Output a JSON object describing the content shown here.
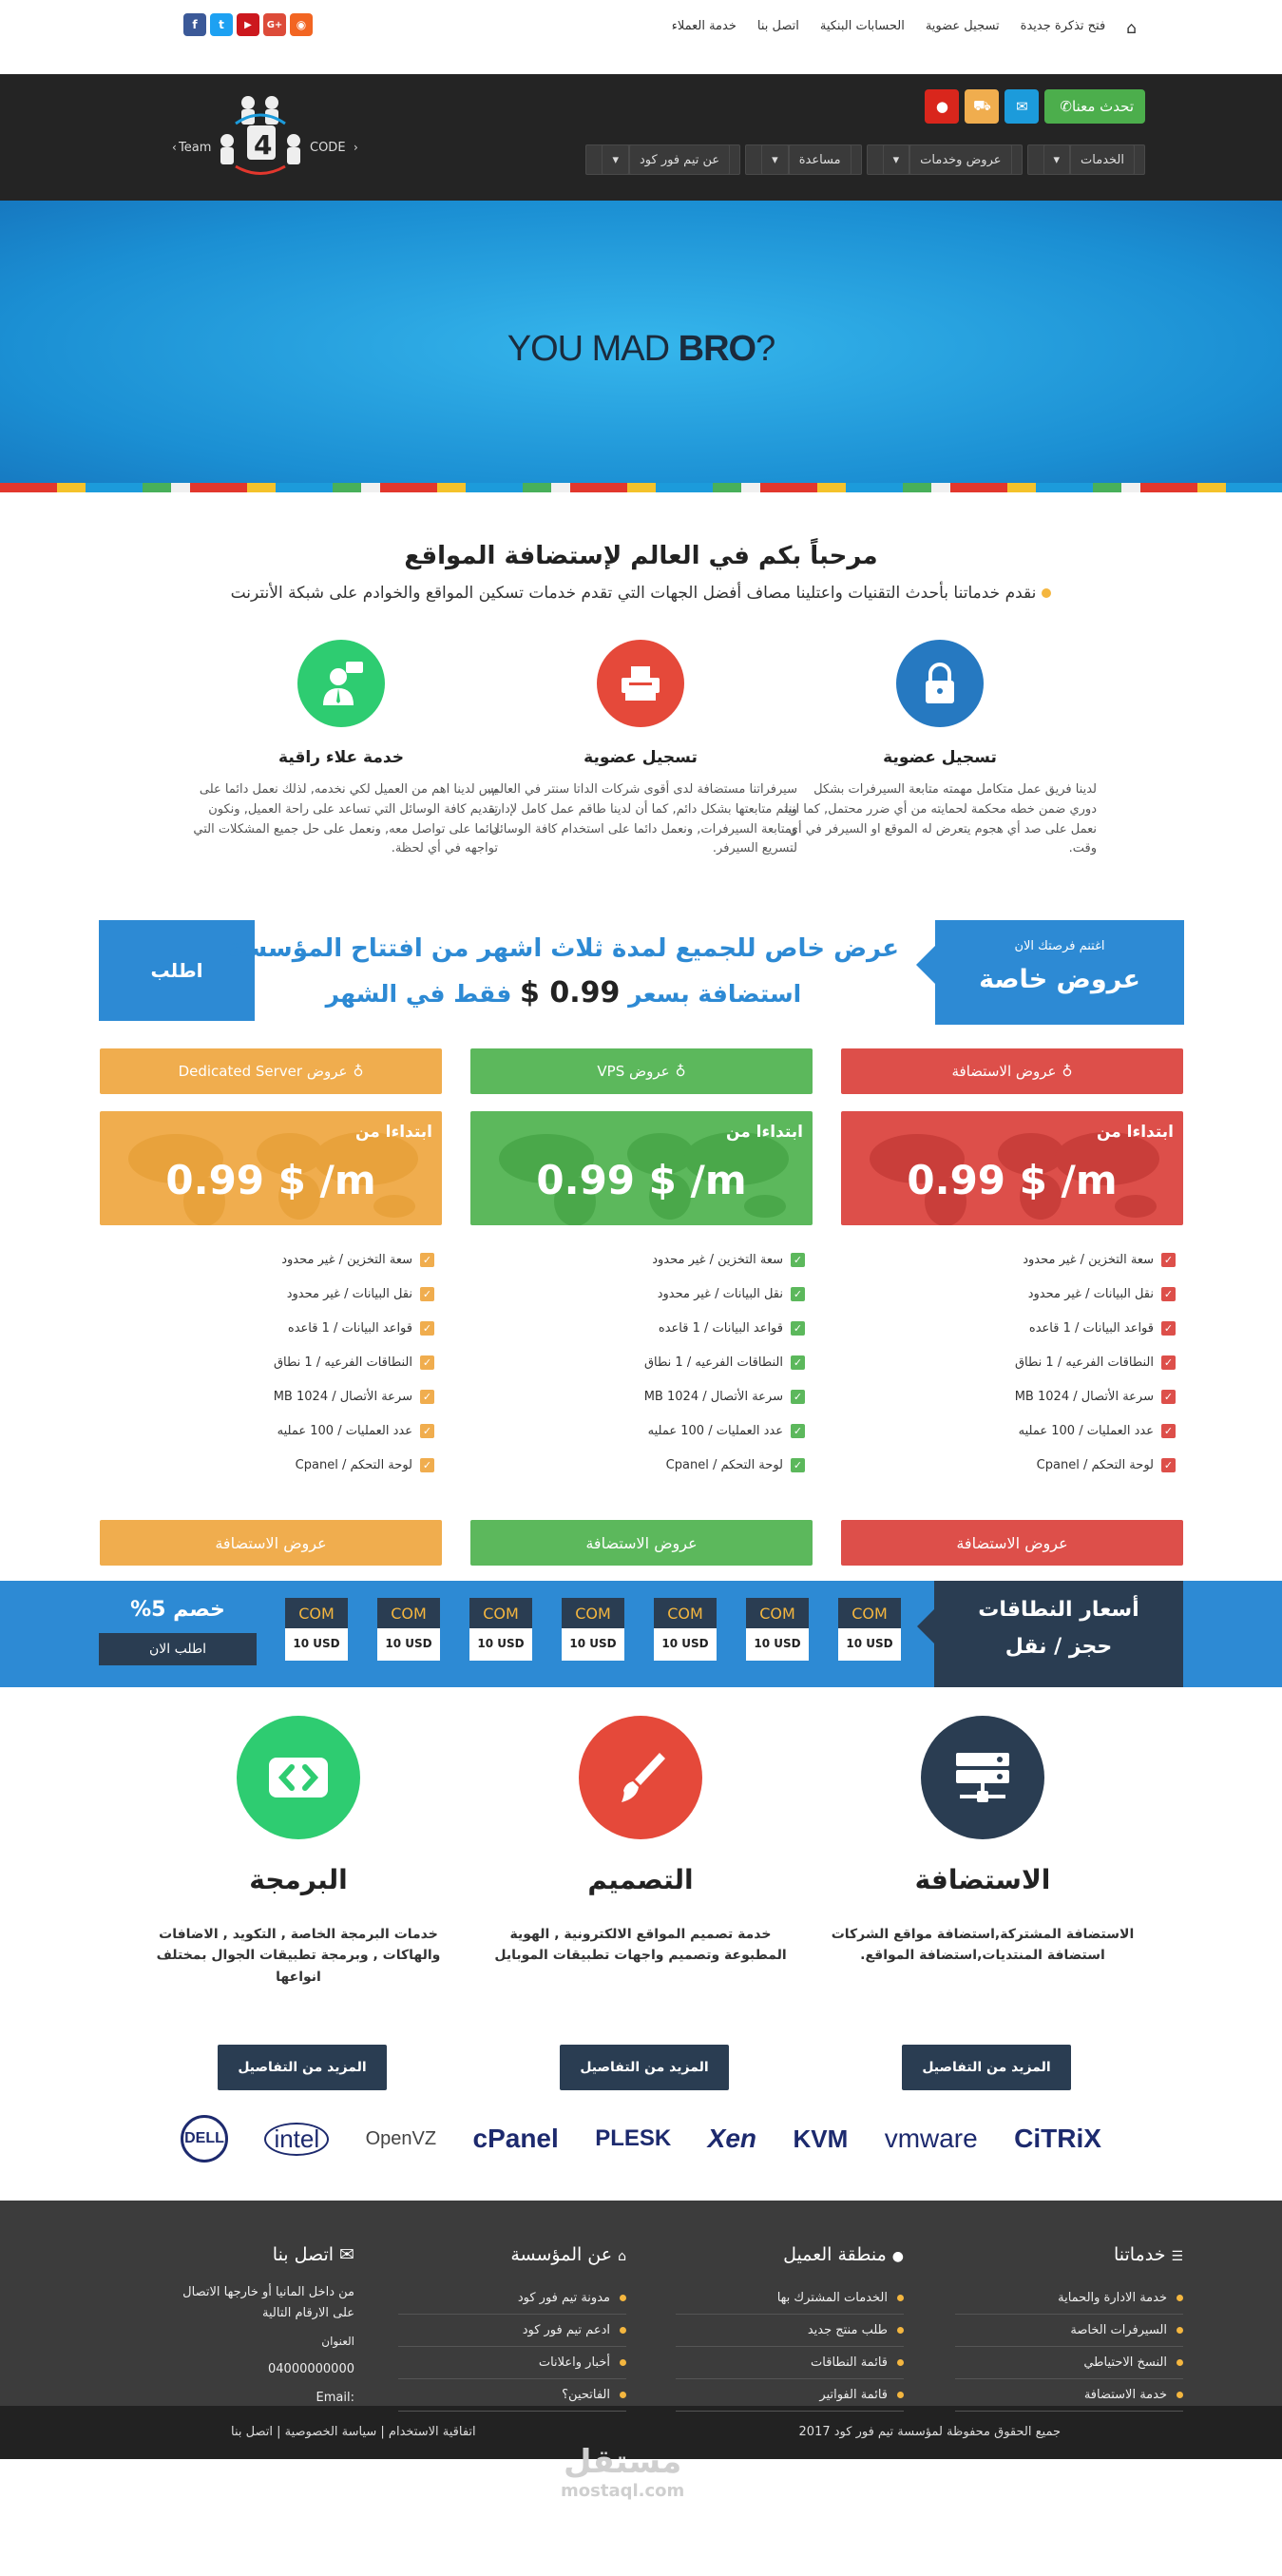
{
  "topnav": {
    "items": [
      "فتح تذكرة جديدة",
      "تسجيل عضوية",
      "الحسابات البنكية",
      "اتصل بنا",
      "خدمة العملاء"
    ]
  },
  "social": [
    {
      "name": "facebook",
      "glyph": "f",
      "color": "#3b5998"
    },
    {
      "name": "twitter",
      "glyph": "t",
      "color": "#1da1f2"
    },
    {
      "name": "youtube",
      "glyph": "▶",
      "color": "#cc181e"
    },
    {
      "name": "google-plus",
      "glyph": "G+",
      "color": "#dd4b39"
    },
    {
      "name": "rss",
      "glyph": "◉",
      "color": "#f26522"
    }
  ],
  "logo": {
    "left": "Team",
    "right": "CODE",
    "num": "4"
  },
  "header": {
    "chat_label": "تحدث معنا",
    "menu": [
      "الخدمات",
      "عروض وخدمات",
      "مساعدة",
      "عن تيم فور كود"
    ]
  },
  "hero": {
    "text_a": "YOU MAD ",
    "text_b": "BRO",
    "text_c": "?"
  },
  "welcome": {
    "title": "مرحباً بكم في العالم لإستضافة المواقع",
    "subtitle": "نقدم خدماتنا بأحدث التقنيات واعتلينا مصاف أفضل الجهات التي تقدم خدمات تسكين المواقع والخوادم على شبكة الأنترنت",
    "features": [
      {
        "title": "تسجيل عضوية",
        "text": "لدينا فريق عمل متكامل مهمته متابعة السيرفرات بشكل دوري ضمن خطه محكمة لحمايته من أي ضرر محتمل, كما اننا نعمل على صد أي هجوم يتعرض له الموقع او السيرفر في أي وقت."
      },
      {
        "title": "تسجيل عضوية",
        "text": "سيرفراتنا مستضافة لدى أقوى شركات الداتا سنتر في العالم, ويتم متابعتها بشكل دائم, كما أن لدينا طاقم عمل كامل لإدارة ومتابعة السيرفرات, ونعمل دائما على استخدام كافة الوسائل لتسريع السيرفر."
      },
      {
        "title": "خدمة علاء راقية",
        "text": "يس لدينا اهم من العميل لكي نخدمه, لذلك نعمل دائما على تقديم كافة الوسائل التي تساعد على راحة العميل, ونكون دائما على تواصل معه, ونعمل على حل جميع المشكلات التي تواجهه في أي لحظة."
      }
    ]
  },
  "offer": {
    "tag_small": "اغتنم فرصتك الان",
    "tag_big": "عروض خاصة",
    "line1": "عرض خاص للجميع لمدة ثلاث اشهر من افتتاح المؤسسة",
    "line2_a": "استضافة بسعر",
    "line2_price": "0.99 $",
    "line2_b": "فقط في الشهر",
    "button": "اطلب"
  },
  "pricing": {
    "plans": [
      {
        "title": "عروض الاستضافة",
        "from": "ابتداءا من",
        "price": "0.99 $ /m",
        "button": "عروض الاستضافة",
        "color": "#dd4f4a",
        "dark": "#c93e3a"
      },
      {
        "title": "عروض VPS",
        "from": "ابتداءا من",
        "price": "0.99 $ /m",
        "button": "عروض الاستضافة",
        "color": "#5cb85c",
        "dark": "#4aa84a"
      },
      {
        "title": "عروض Dedicated Server",
        "from": "ابتداءا من",
        "price": "0.99 $ /m",
        "button": "عروض الاستضافة",
        "color": "#f0ad4e",
        "dark": "#e8a23c"
      }
    ],
    "features": [
      "سعة التخزين / غير محدود",
      "نقل البيانات / غير محدود",
      "قواعد البيانات / 1 قاعده",
      "النطاقات الفرعيه / 1 نطاق",
      "سرعة الأتصال / 1024 MB",
      "عدد العمليات / 100 عمليه",
      "لوحة التحكم / Cpanel"
    ]
  },
  "domains": {
    "title1": "أسعار النطاقات",
    "title2": "حجز / نقل",
    "tlds": [
      {
        "name": "COM",
        "price": "10 USD"
      },
      {
        "name": "COM",
        "price": "10 USD"
      },
      {
        "name": "COM",
        "price": "10 USD"
      },
      {
        "name": "COM",
        "price": "10 USD"
      },
      {
        "name": "COM",
        "price": "10 USD"
      },
      {
        "name": "COM",
        "price": "10 USD"
      },
      {
        "name": "COM",
        "price": "10 USD"
      }
    ],
    "discount": "خصم 5%",
    "order": "اطلب الان"
  },
  "services": [
    {
      "title": "الاستضافة",
      "text": "الاستضافة المشتركة,استضافة مواقع الشركات استضافة المنتديات,استضافة المواقع.",
      "button": "المزيد من التفاصيل",
      "color": "#2a3d52"
    },
    {
      "title": "التصميم",
      "text": "خدمة تصميم المواقع الالكترونية , الهوية المطبوعة وتصميم واجهات تطبيقات الموبايل",
      "button": "المزيد من التفاصيل",
      "color": "#e5493a"
    },
    {
      "title": "البرمجة",
      "text": "خدمات البرمجة الخاصة , التكويد , الاضافات والهاكات , وبرمجة تطبيقات الجوال بمختلف انواعها",
      "button": "المزيد من التفاصيل",
      "color": "#2ecc71"
    }
  ],
  "brands": [
    "DELL",
    "intel",
    "OpenVZ",
    "cPanel",
    "PLESK",
    "Xen",
    "KVM",
    "vmware",
    "CiTRiX"
  ],
  "footer": {
    "cols": [
      {
        "title": "خدماتنا",
        "items": [
          "خدمة الادارة والحماية",
          "السيرفرات الخاصة",
          "النسخ الاحتياطي",
          "خدمة الاستضافة"
        ]
      },
      {
        "title": "منطقة العميل",
        "items": [
          "الخدمات المشترك بها",
          "طلب منتج جديد",
          "قائمة النطاقات",
          "قائمة الفواتير"
        ]
      },
      {
        "title": "عن المؤسسة",
        "items": [
          "مدونة تيم فور كود",
          "ادعم تيم فور كود",
          "أخبار واعلانات",
          "الفاتحين؟"
        ]
      }
    ],
    "contact_title": "اتصل بنا",
    "contact_text": "من داخل المانيا أو خارجها الاتصال على الارقام التالية",
    "address_label": "العنوان",
    "phone": "04000000000",
    "email": "Email: info@teamforcode.com",
    "copyright": "جميع الحقوق محفوظة لمؤسسة تيم فور كود 2017",
    "links": "اتفاقية الاستخدام | سياسة الخصوصية | اتصل بنا"
  },
  "watermark": {
    "ar": "مستقل",
    "en": "mostaql.com"
  }
}
